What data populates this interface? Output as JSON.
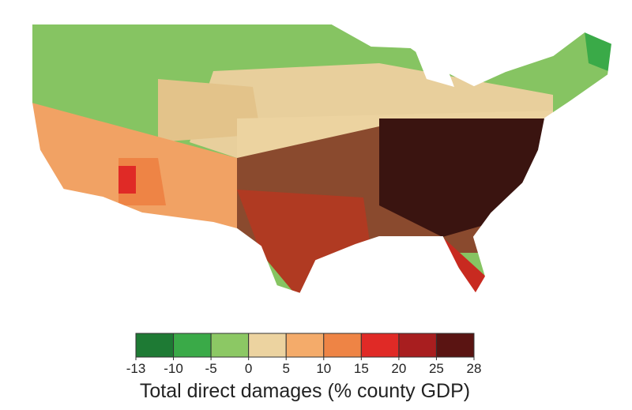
{
  "legend": {
    "title": "Total direct damages (% county GDP)",
    "ticks": [
      -13,
      -10,
      -5,
      0,
      5,
      10,
      15,
      20,
      25,
      28
    ],
    "colors": [
      "#1e7a34",
      "#3aaa48",
      "#8cc864",
      "#ecd3a0",
      "#f4ab6a",
      "#ee8445",
      "#e02a26",
      "#a81e1f",
      "#5a1412"
    ]
  }
}
